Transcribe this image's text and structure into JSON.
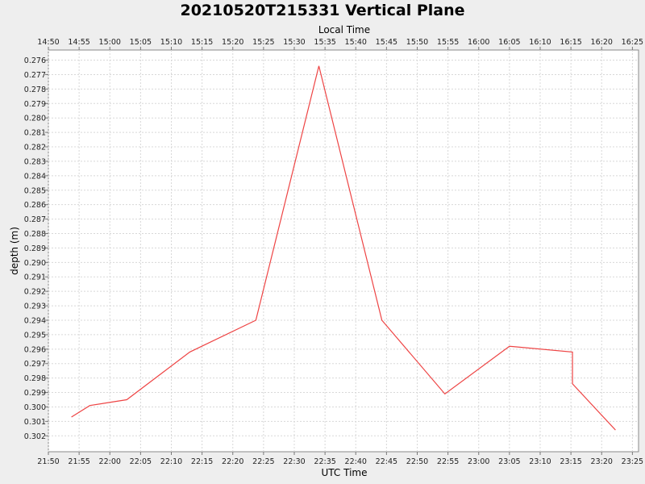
{
  "chart_data": {
    "type": "line",
    "title": "20210520T215331 Vertical Plane",
    "xlabel": "UTC Time",
    "x2label": "Local Time",
    "ylabel": "depth (m)",
    "y_inverted": true,
    "ylim": [
      0.2753,
      0.3031
    ],
    "xlim": [
      "21:50",
      "23:26"
    ],
    "grid": true,
    "x_ticks": [
      "21:50",
      "21:55",
      "22:00",
      "22:05",
      "22:10",
      "22:15",
      "22:20",
      "22:25",
      "22:30",
      "22:35",
      "22:40",
      "22:45",
      "22:50",
      "22:55",
      "23:00",
      "23:05",
      "23:10",
      "23:15",
      "23:20",
      "23:25"
    ],
    "x2_ticks": [
      "14:50",
      "14:55",
      "15:00",
      "15:05",
      "15:10",
      "15:15",
      "15:20",
      "15:25",
      "15:30",
      "15:35",
      "15:40",
      "15:45",
      "15:50",
      "15:55",
      "16:00",
      "16:05",
      "16:10",
      "16:15",
      "16:20",
      "16:25"
    ],
    "y_ticks": [
      "0.276",
      "0.277",
      "0.278",
      "0.279",
      "0.280",
      "0.281",
      "0.282",
      "0.283",
      "0.284",
      "0.285",
      "0.286",
      "0.287",
      "0.288",
      "0.289",
      "0.290",
      "0.291",
      "0.292",
      "0.293",
      "0.294",
      "0.295",
      "0.296",
      "0.297",
      "0.298",
      "0.299",
      "0.300",
      "0.301",
      "0.302"
    ],
    "series": [
      {
        "color": "#ee4444",
        "x": [
          "21:53:45",
          "21:56:45",
          "22:02:45",
          "22:13:00",
          "22:23:45",
          "22:34:00",
          "22:44:15",
          "22:54:30",
          "23:05:00",
          "23:15:15",
          "23:15:15",
          "23:22:15"
        ],
        "y": [
          0.3007,
          0.2999,
          0.2995,
          0.2962,
          0.294,
          0.2764,
          0.294,
          0.2991,
          0.2958,
          0.2962,
          0.2984,
          0.3016
        ]
      }
    ]
  }
}
